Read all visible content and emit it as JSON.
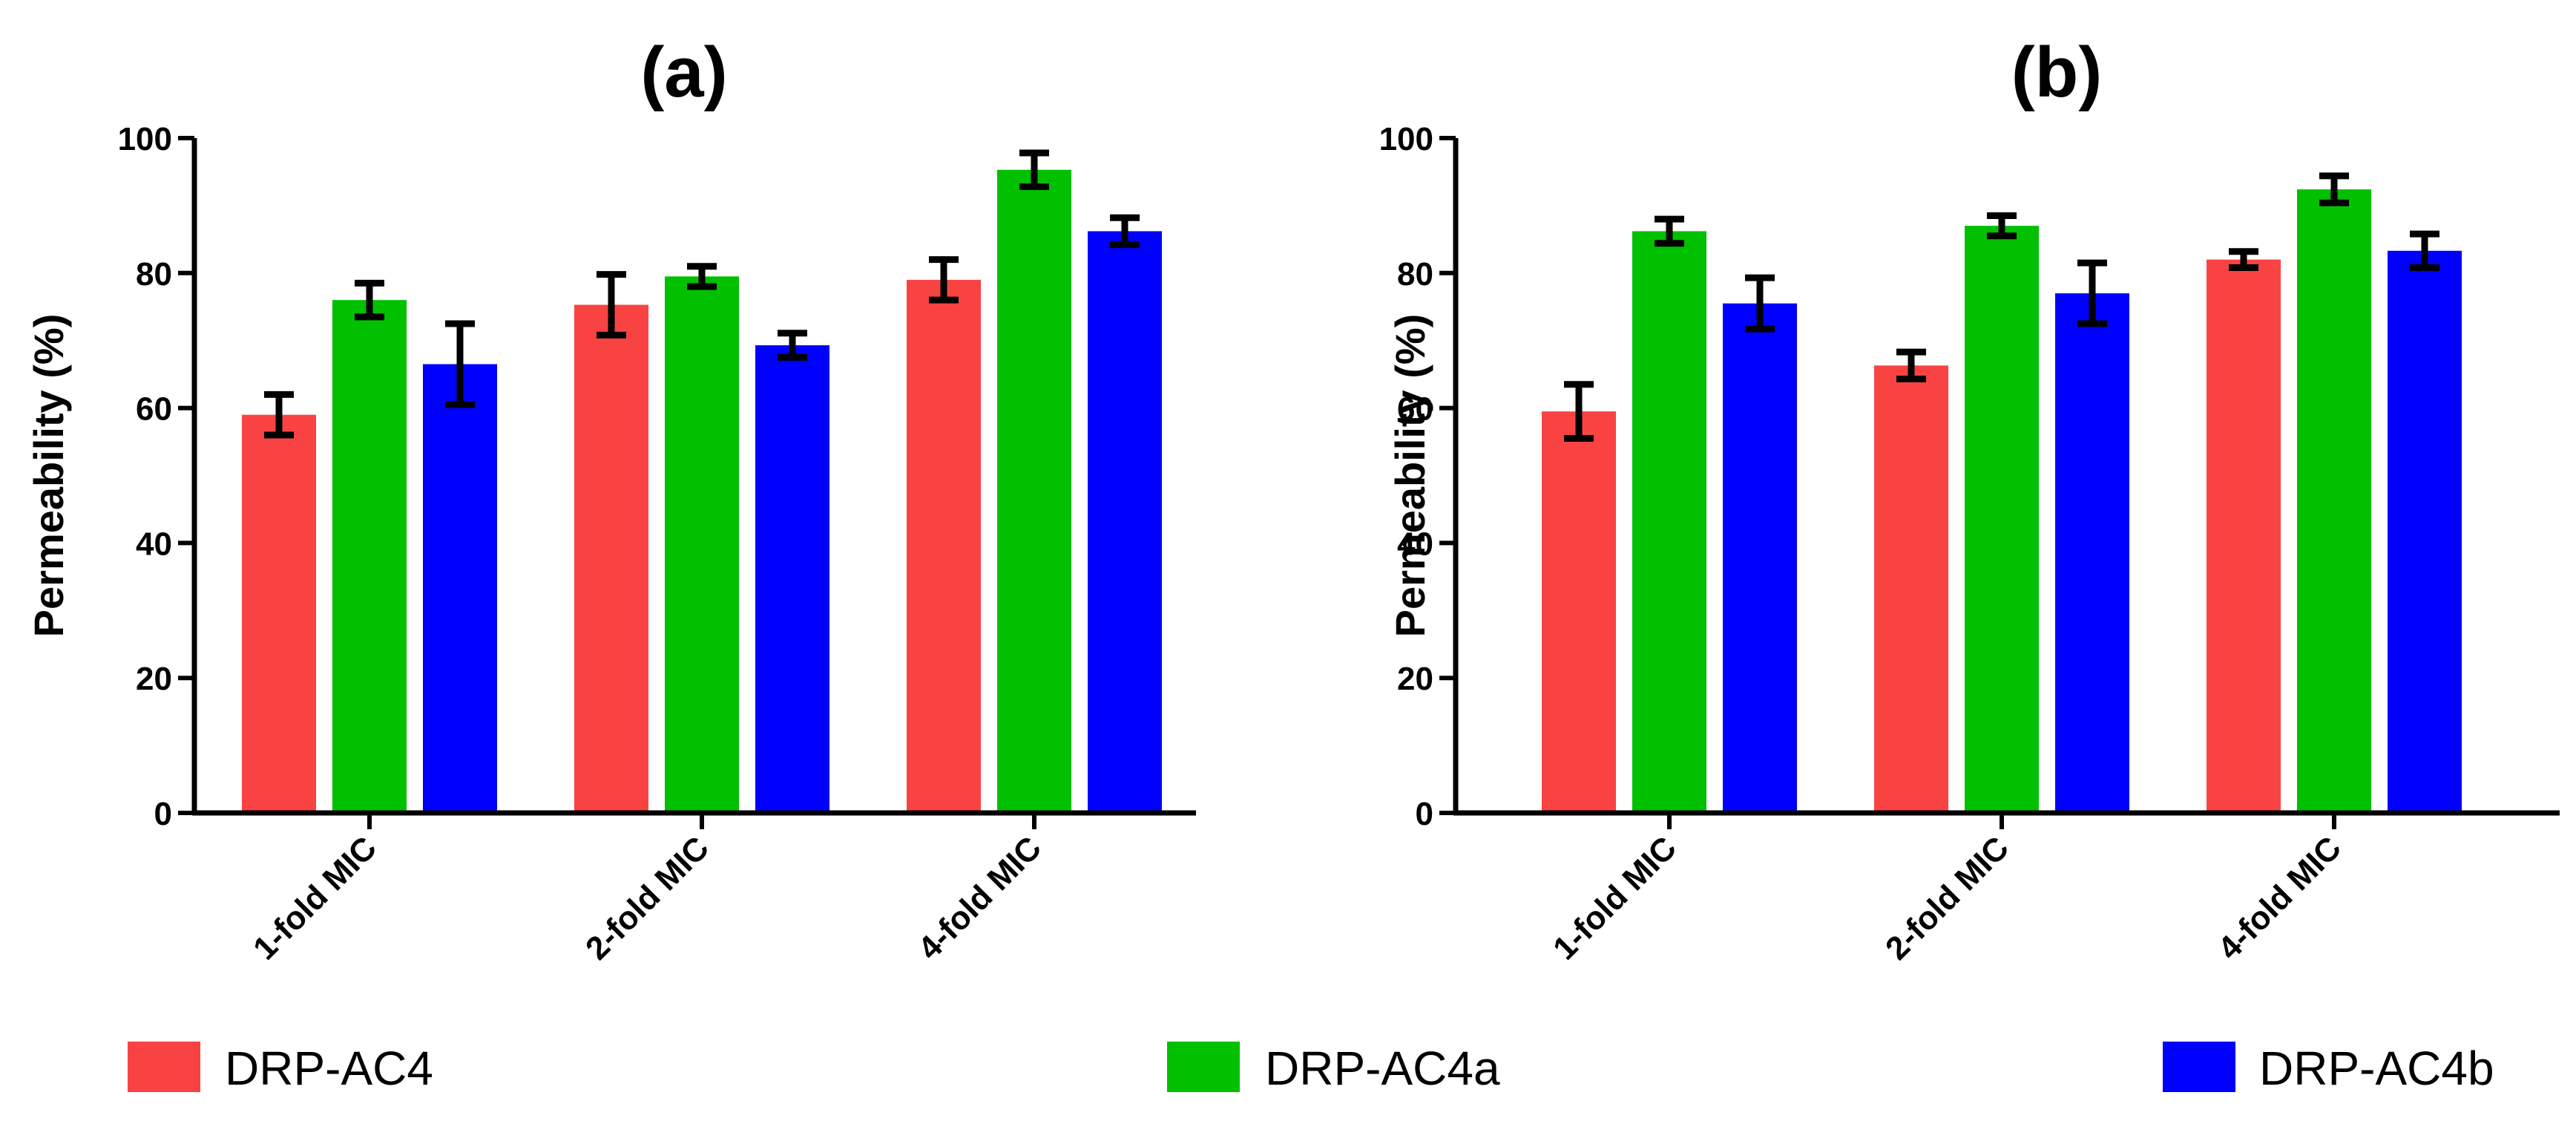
{
  "chart_data": [
    {
      "type": "bar",
      "title": "(a)",
      "xlabel": "",
      "ylabel": "Permeability (%)",
      "ylim": [
        0,
        100
      ],
      "yticks": [
        0,
        20,
        40,
        60,
        80,
        100
      ],
      "categories": [
        "1-fold MIC",
        "2-fold MIC",
        "4-fold MIC"
      ],
      "series": [
        {
          "name": "DRP-AC4",
          "color": "#f94343",
          "values": [
            59,
            75.3,
            79
          ],
          "errors": [
            3,
            4.5,
            3
          ]
        },
        {
          "name": "DRP-AC4a",
          "color": "#00c000",
          "values": [
            76,
            79.5,
            95.3
          ],
          "errors": [
            2.5,
            1.5,
            2.5
          ]
        },
        {
          "name": "DRP-AC4b",
          "color": "#0000ff",
          "values": [
            66.5,
            69.3,
            86.2
          ],
          "errors": [
            6,
            1.8,
            2
          ]
        }
      ]
    },
    {
      "type": "bar",
      "title": "(b)",
      "xlabel": "",
      "ylabel": "Permeability (%)",
      "ylim": [
        0,
        100
      ],
      "yticks": [
        0,
        20,
        40,
        60,
        80,
        100
      ],
      "categories": [
        "1-fold MIC",
        "2-fold MIC",
        "4-fold MIC"
      ],
      "series": [
        {
          "name": "DRP-AC4",
          "color": "#f94343",
          "values": [
            59.5,
            66.3,
            82
          ],
          "errors": [
            4,
            2,
            1.2
          ]
        },
        {
          "name": "DRP-AC4a",
          "color": "#00c000",
          "values": [
            86.2,
            87,
            92.4
          ],
          "errors": [
            1.8,
            1.5,
            2
          ]
        },
        {
          "name": "DRP-AC4b",
          "color": "#0000ff",
          "values": [
            75.5,
            77,
            83.3
          ],
          "errors": [
            3.8,
            4.5,
            2.5
          ]
        }
      ]
    }
  ],
  "legend": {
    "placement": "bottom",
    "items": [
      {
        "label": "DRP-AC4",
        "color": "#f94343"
      },
      {
        "label": "DRP-AC4a",
        "color": "#00c000"
      },
      {
        "label": "DRP-AC4b",
        "color": "#0000ff"
      }
    ]
  }
}
